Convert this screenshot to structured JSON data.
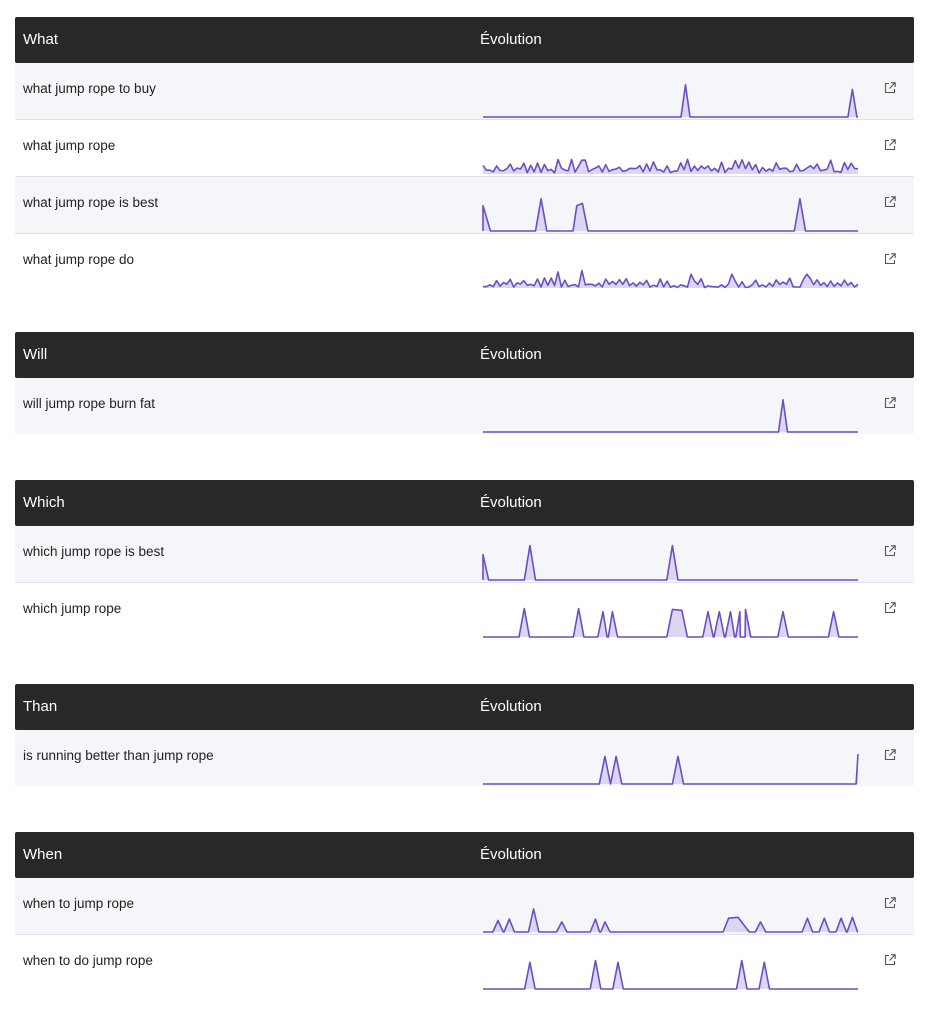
{
  "header_right": "Évolution",
  "icon": "external-link-icon",
  "accent": "#6a4fc4",
  "fill": "#ddd6f1",
  "sections": [
    {
      "title": "What",
      "rows": [
        {
          "label": "what jump rope to buy",
          "trend": [
            0,
            0,
            0,
            0,
            0,
            0,
            0,
            0,
            0,
            0,
            0,
            0,
            0,
            0,
            0,
            0,
            0,
            0,
            0,
            0,
            0,
            0,
            0,
            0,
            0,
            0,
            0,
            0,
            0,
            0,
            0,
            0,
            0,
            0,
            0,
            0,
            0,
            0,
            0,
            0,
            0,
            0,
            0,
            0,
            0,
            0,
            0,
            0,
            0,
            0,
            0,
            0,
            0,
            0,
            0,
            0,
            0,
            0,
            0,
            0,
            0,
            0,
            0,
            0,
            0,
            0,
            0,
            0,
            0,
            0,
            0,
            0,
            0,
            0,
            0,
            0,
            0,
            0,
            0,
            0,
            0,
            0,
            0,
            0,
            0,
            0,
            0,
            0,
            0,
            0,
            0,
            0,
            0,
            0,
            0,
            0,
            0,
            0,
            0,
            0,
            0,
            0,
            0,
            0,
            0,
            0,
            0,
            0,
            0,
            0,
            0,
            0,
            0,
            0,
            0,
            0,
            0,
            0,
            0,
            0,
            0,
            0,
            0,
            0,
            0,
            0,
            0,
            0,
            0,
            0,
            0,
            0,
            0,
            0,
            0,
            0,
            0,
            0,
            0,
            0,
            0,
            0,
            0,
            0,
            0,
            0,
            0,
            0,
            0,
            0,
            0,
            0,
            0,
            0,
            0,
            0,
            0,
            0,
            0,
            0,
            0,
            0,
            0,
            0,
            0,
            0,
            0,
            0,
            0,
            0,
            0,
            0,
            0,
            0,
            0,
            0,
            0,
            0,
            0,
            0,
            0,
            0,
            0,
            0,
            0,
            0,
            0,
            0,
            0,
            0,
            0,
            0,
            0,
            0,
            0,
            0,
            0,
            0,
            0,
            0,
            0,
            0,
            0,
            0,
            0,
            0,
            0,
            0,
            0,
            0,
            0,
            0,
            0,
            0,
            0,
            0,
            0,
            0,
            0,
            0,
            0,
            0,
            0,
            0,
            0,
            0,
            0,
            0,
            0,
            0,
            0,
            0,
            0,
            0,
            0,
            0,
            0,
            0,
            0,
            0,
            0,
            0,
            0,
            0,
            0,
            0,
            0,
            0,
            0,
            0,
            0,
            0,
            0,
            0,
            0,
            0,
            0,
            0,
            0,
            0,
            0,
            0,
            0,
            0,
            0,
            0,
            0,
            0,
            0,
            0,
            0,
            0,
            0,
            0,
            0,
            0,
            0,
            0,
            0,
            0,
            0,
            0,
            0,
            0,
            0,
            0,
            0,
            0,
            0,
            0,
            0,
            0,
            0,
            0,
            0,
            0,
            0,
            0,
            0,
            0,
            0,
            0,
            0,
            0,
            0,
            0,
            0,
            0,
            0,
            0,
            0,
            0,
            0,
            0,
            0,
            0,
            0,
            0,
            0,
            0,
            0,
            0,
            0,
            0,
            0,
            0,
            0,
            0,
            0,
            0,
            0,
            0,
            0,
            0,
            0,
            0,
            0,
            0,
            0,
            0,
            0,
            0,
            0,
            0,
            0,
            0,
            0,
            0,
            0,
            0,
            0,
            0,
            0,
            0,
            0,
            0,
            0,
            0,
            0,
            0,
            0,
            0,
            0,
            0,
            0,
            0,
            0,
            0,
            0,
            0,
            0,
            0,
            0,
            0,
            0,
            0
          ]
        },
        {
          "label": "what jump rope",
          "trend": []
        },
        {
          "label": "what jump rope is best",
          "trend": []
        },
        {
          "label": "what jump rope do",
          "trend": []
        }
      ]
    },
    {
      "title": "Will",
      "rows": [
        {
          "label": "will jump rope burn fat",
          "trend": []
        }
      ]
    },
    {
      "title": "Which",
      "rows": [
        {
          "label": "which jump rope is best",
          "trend": []
        },
        {
          "label": "which jump rope",
          "trend": []
        }
      ]
    },
    {
      "title": "Than",
      "rows": [
        {
          "label": "is running better than jump rope",
          "trend": []
        }
      ]
    },
    {
      "title": "When",
      "rows": [
        {
          "label": "when to jump rope",
          "trend": []
        },
        {
          "label": "when to do jump rope",
          "trend": []
        }
      ]
    }
  ]
}
